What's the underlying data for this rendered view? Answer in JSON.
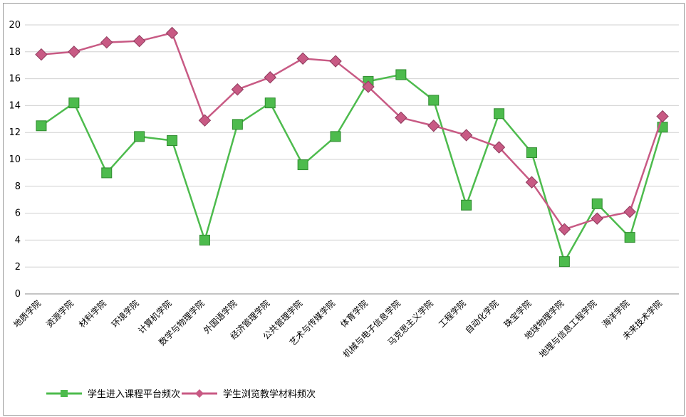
{
  "chart_data": {
    "type": "line",
    "title": "",
    "xlabel": "",
    "ylabel": "",
    "ylim": [
      0,
      20
    ],
    "y_ticks": [
      "0",
      "2",
      "4",
      "6",
      "8",
      "10",
      "12",
      "14",
      "16",
      "18",
      "20"
    ],
    "grid": true,
    "legend_position": "bottom",
    "categories": [
      "地质学院",
      "资源学院",
      "材料学院",
      "环境学院",
      "计算机学院",
      "数学与物理学院",
      "外国语学院",
      "经济管理学院",
      "公共管理学院",
      "艺术与传媒学院",
      "体育学院",
      "机械与电子信息学院",
      "马克思主义学院",
      "工程学院",
      "自动化学院",
      "珠宝学院",
      "地球物理学院",
      "地理与信息工程学院",
      "海洋学院",
      "未来技术学院"
    ],
    "series": [
      {
        "name": "学生进入课程平台频次",
        "color": "#4dbb4d",
        "marker": "square",
        "values": [
          12.5,
          14.2,
          9.0,
          11.7,
          11.4,
          4.0,
          12.6,
          14.2,
          9.6,
          11.7,
          15.8,
          16.3,
          14.4,
          6.6,
          13.4,
          10.5,
          2.4,
          6.7,
          4.2,
          12.4
        ]
      },
      {
        "name": "学生浏览教学材料频次",
        "color": "#c85a84",
        "marker": "diamond",
        "values": [
          17.8,
          18.0,
          18.7,
          18.8,
          19.4,
          12.9,
          15.2,
          16.1,
          17.5,
          17.3,
          15.4,
          13.1,
          12.5,
          11.8,
          10.9,
          8.3,
          4.8,
          5.6,
          6.1,
          13.2
        ]
      }
    ]
  }
}
